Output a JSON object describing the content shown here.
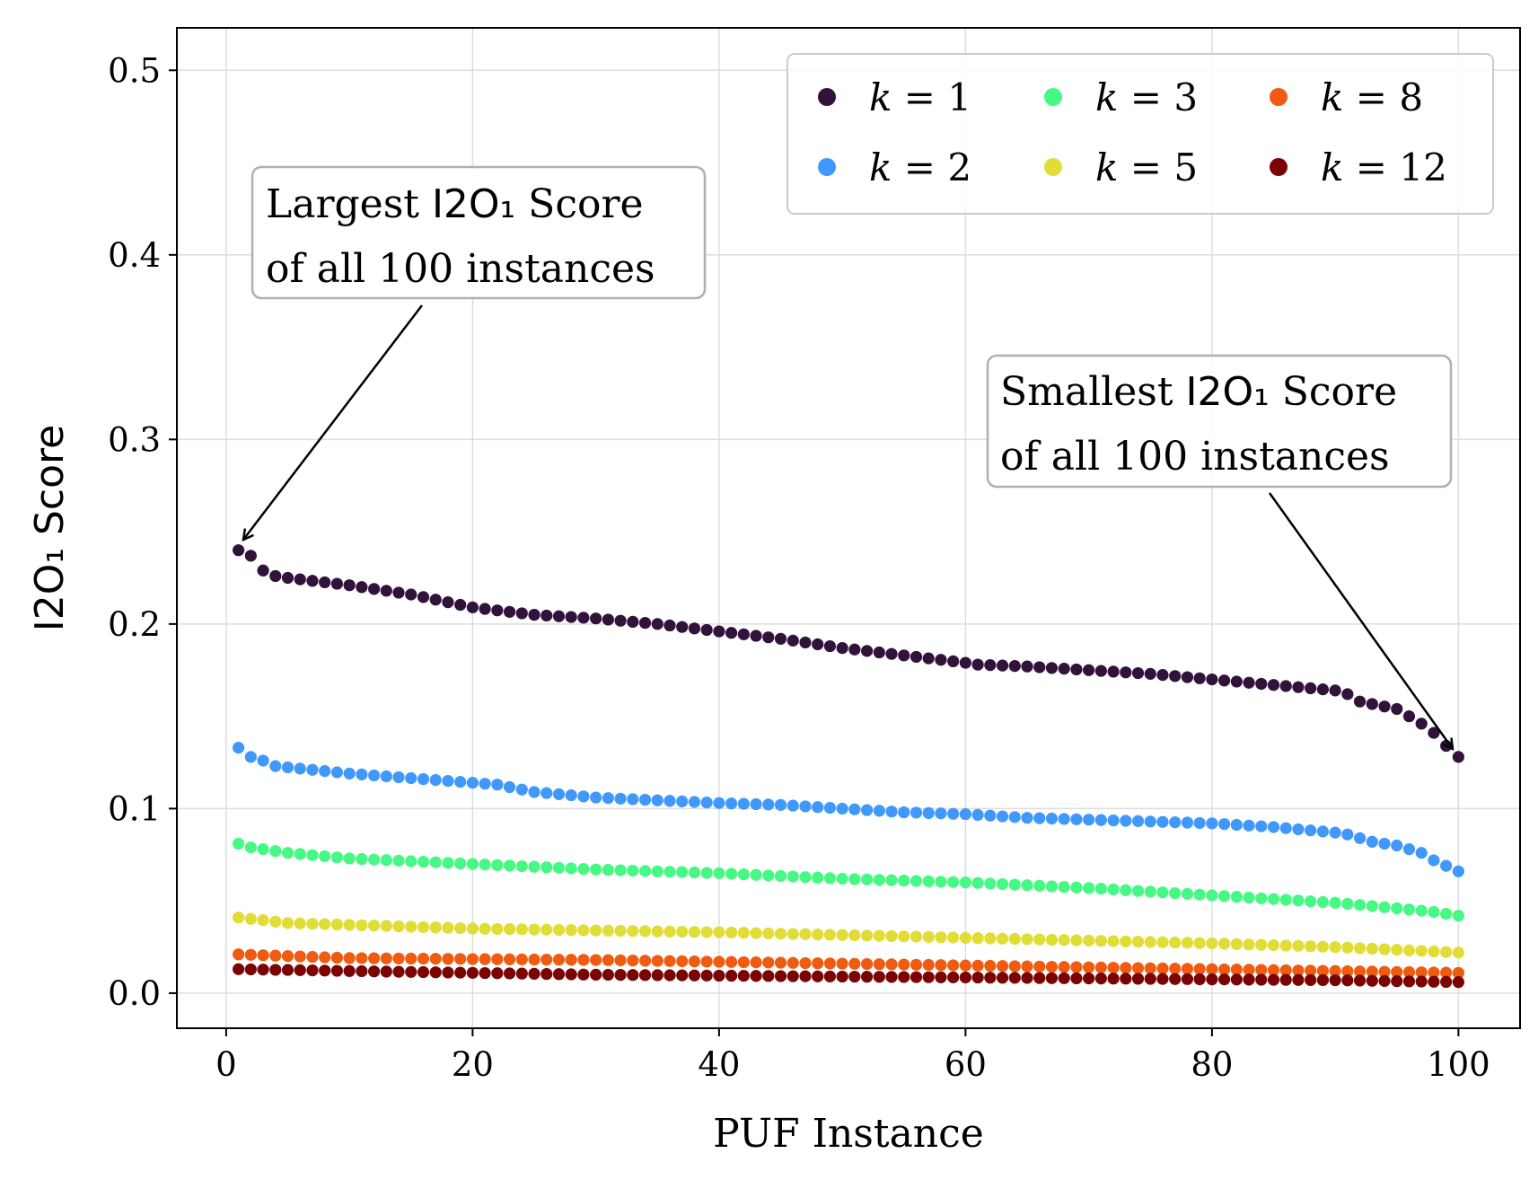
{
  "chart_data": {
    "type": "scatter",
    "xlabel": "PUF Instance",
    "ylabel": "I2O₁ Score",
    "xlim": [
      -4,
      105
    ],
    "ylim": [
      -0.019,
      0.523
    ],
    "xticks": [
      0,
      20,
      40,
      60,
      80,
      100
    ],
    "yticks": [
      0.0,
      0.1,
      0.2,
      0.3,
      0.4,
      0.5
    ],
    "xtick_labels": [
      "0",
      "20",
      "40",
      "60",
      "80",
      "100"
    ],
    "ytick_labels": [
      "0.0",
      "0.1",
      "0.2",
      "0.3",
      "0.4",
      "0.5"
    ],
    "grid": true,
    "legend_position": "top-right",
    "legend_columns": 3,
    "x": {
      "start": 1,
      "end": 100,
      "step": 1
    },
    "series": [
      {
        "name": "k = 1",
        "k": "1",
        "color": "#30123b",
        "anchors": [
          [
            1,
            0.24
          ],
          [
            2,
            0.237
          ],
          [
            3,
            0.229
          ],
          [
            4,
            0.226
          ],
          [
            5,
            0.225
          ],
          [
            10,
            0.221
          ],
          [
            15,
            0.216
          ],
          [
            20,
            0.209
          ],
          [
            25,
            0.205
          ],
          [
            30,
            0.203
          ],
          [
            35,
            0.2
          ],
          [
            40,
            0.196
          ],
          [
            45,
            0.192
          ],
          [
            50,
            0.187
          ],
          [
            55,
            0.183
          ],
          [
            60,
            0.179
          ],
          [
            61,
            0.178
          ],
          [
            65,
            0.177
          ],
          [
            70,
            0.175
          ],
          [
            75,
            0.173
          ],
          [
            80,
            0.17
          ],
          [
            85,
            0.167
          ],
          [
            90,
            0.164
          ],
          [
            91,
            0.162
          ],
          [
            92,
            0.158
          ],
          [
            95,
            0.154
          ],
          [
            96,
            0.15
          ],
          [
            97,
            0.146
          ],
          [
            98,
            0.141
          ],
          [
            99,
            0.134
          ],
          [
            100,
            0.128
          ]
        ]
      },
      {
        "name": "k = 2",
        "k": "2",
        "color": "#4099fa",
        "anchors": [
          [
            1,
            0.133
          ],
          [
            2,
            0.128
          ],
          [
            3,
            0.126
          ],
          [
            4,
            0.123
          ],
          [
            10,
            0.119
          ],
          [
            20,
            0.114
          ],
          [
            22,
            0.113
          ],
          [
            25,
            0.109
          ],
          [
            30,
            0.106
          ],
          [
            40,
            0.103
          ],
          [
            45,
            0.102
          ],
          [
            50,
            0.1
          ],
          [
            55,
            0.098
          ],
          [
            60,
            0.097
          ],
          [
            65,
            0.095
          ],
          [
            70,
            0.094
          ],
          [
            75,
            0.093
          ],
          [
            80,
            0.092
          ],
          [
            85,
            0.09
          ],
          [
            90,
            0.087
          ],
          [
            91,
            0.086
          ],
          [
            93,
            0.082
          ],
          [
            95,
            0.08
          ],
          [
            97,
            0.076
          ],
          [
            98,
            0.072
          ],
          [
            100,
            0.066
          ]
        ]
      },
      {
        "name": "k = 3",
        "k": "3",
        "color": "#46f884",
        "anchors": [
          [
            1,
            0.081
          ],
          [
            2,
            0.079
          ],
          [
            5,
            0.076
          ],
          [
            10,
            0.073
          ],
          [
            20,
            0.07
          ],
          [
            30,
            0.067
          ],
          [
            40,
            0.065
          ],
          [
            50,
            0.062
          ],
          [
            60,
            0.06
          ],
          [
            70,
            0.057
          ],
          [
            80,
            0.053
          ],
          [
            90,
            0.049
          ],
          [
            95,
            0.046
          ],
          [
            98,
            0.044
          ],
          [
            100,
            0.042
          ]
        ]
      },
      {
        "name": "k = 5",
        "k": "5",
        "color": "#e1dd37",
        "anchors": [
          [
            1,
            0.041
          ],
          [
            5,
            0.038
          ],
          [
            10,
            0.037
          ],
          [
            20,
            0.035
          ],
          [
            40,
            0.033
          ],
          [
            60,
            0.03
          ],
          [
            80,
            0.027
          ],
          [
            90,
            0.025
          ],
          [
            100,
            0.022
          ]
        ]
      },
      {
        "name": "k = 8",
        "k": "8",
        "color": "#f05b12",
        "anchors": [
          [
            1,
            0.021
          ],
          [
            10,
            0.019
          ],
          [
            30,
            0.018
          ],
          [
            50,
            0.016
          ],
          [
            70,
            0.014
          ],
          [
            90,
            0.012
          ],
          [
            100,
            0.011
          ]
        ]
      },
      {
        "name": "k = 12",
        "k": "12",
        "color": "#7a0403",
        "anchors": [
          [
            1,
            0.013
          ],
          [
            10,
            0.012
          ],
          [
            30,
            0.01
          ],
          [
            50,
            0.009
          ],
          [
            70,
            0.008
          ],
          [
            90,
            0.007
          ],
          [
            100,
            0.006
          ]
        ]
      }
    ],
    "annotations": [
      {
        "id": "largest",
        "line1_a": "Largest ",
        "line1_b": "I2O₁",
        "line1_c": " Score",
        "line2": "of all 100 instances",
        "target": [
          1,
          0.24
        ]
      },
      {
        "id": "smallest",
        "line1_a": "Smallest ",
        "line1_b": "I2O₁",
        "line1_c": " Score",
        "line2": "of all 100 instances",
        "target": [
          100,
          0.128
        ]
      }
    ]
  },
  "legend": {
    "items": [
      {
        "prefix": "k",
        "value": "1"
      },
      {
        "prefix": "k",
        "value": "2"
      },
      {
        "prefix": "k",
        "value": "3"
      },
      {
        "prefix": "k",
        "value": "5"
      },
      {
        "prefix": "k",
        "value": "8"
      },
      {
        "prefix": "k",
        "value": "12"
      }
    ]
  }
}
